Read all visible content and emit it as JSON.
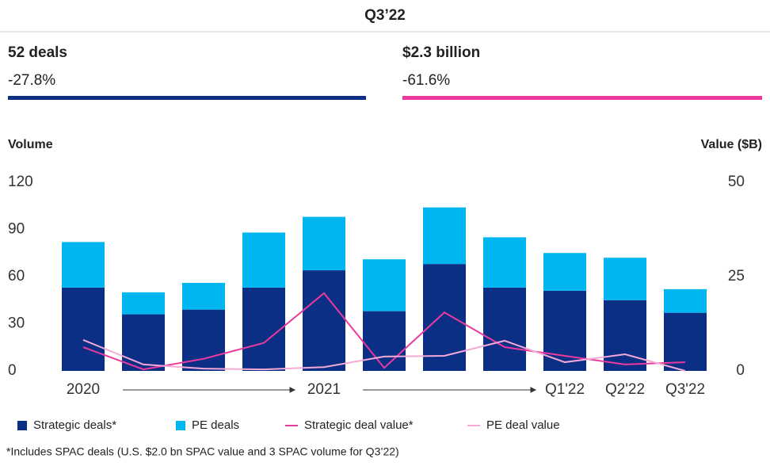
{
  "header": {
    "title": "Q3’22",
    "left": {
      "value": "52 deals",
      "change": "-27.8%",
      "color": "#0c2f86"
    },
    "right": {
      "value": "$2.3 billion",
      "change": "-61.6%",
      "color": "#ea3a9e"
    }
  },
  "chart_data": {
    "type": "bar",
    "stacked": true,
    "y_label": "Volume",
    "y2_label": "Value ($B)",
    "categories": [
      "2020",
      null,
      null,
      null,
      "2021",
      null,
      null,
      null,
      "Q1'22",
      "Q2'22",
      "Q3'22"
    ],
    "ylim": [
      0,
      120
    ],
    "yticks": [
      0,
      30,
      60,
      90,
      120
    ],
    "y2lim": [
      0,
      50
    ],
    "y2ticks": [
      0,
      25,
      50
    ],
    "series": [
      {
        "name": "Strategic deals*",
        "type": "bar",
        "color": "#0c2f86",
        "values": [
          53,
          36,
          39,
          53,
          64,
          38,
          68,
          53,
          51,
          45,
          37
        ]
      },
      {
        "name": "PE deals",
        "type": "bar",
        "color": "#00b6f0",
        "values": [
          29,
          14,
          17,
          35,
          34,
          33,
          36,
          32,
          24,
          27,
          15
        ]
      },
      {
        "name": "Strategic deal value*",
        "type": "line",
        "axis": "y2",
        "color": "#ea3a9e",
        "values": [
          6.3,
          0.4,
          3.2,
          7.4,
          20.6,
          0.8,
          15.5,
          6.3,
          4,
          1.7,
          2.3
        ]
      },
      {
        "name": "PE deal value",
        "type": "line",
        "axis": "y2",
        "color": "#f4a9d6",
        "values": [
          8.2,
          1.7,
          0.6,
          0.4,
          1,
          3.8,
          4,
          8,
          2.3,
          4.4,
          0
        ]
      }
    ],
    "footnote": "*Includes SPAC deals (U.S. $2.0 bn SPAC value and 3 SPAC volume for Q3’22)"
  }
}
